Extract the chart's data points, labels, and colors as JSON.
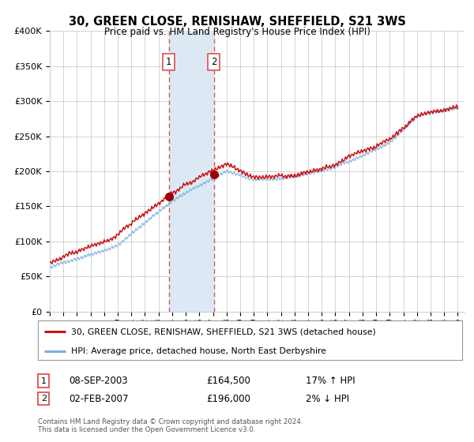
{
  "title": "30, GREEN CLOSE, RENISHAW, SHEFFIELD, S21 3WS",
  "subtitle": "Price paid vs. HM Land Registry's House Price Index (HPI)",
  "red_line_label": "30, GREEN CLOSE, RENISHAW, SHEFFIELD, S21 3WS (detached house)",
  "blue_line_label": "HPI: Average price, detached house, North East Derbyshire",
  "sale1_date": "08-SEP-2003",
  "sale1_price": "£164,500",
  "sale1_hpi": "17% ↑ HPI",
  "sale2_date": "02-FEB-2007",
  "sale2_price": "£196,000",
  "sale2_hpi": "2% ↓ HPI",
  "footer": "Contains HM Land Registry data © Crown copyright and database right 2024.\nThis data is licensed under the Open Government Licence v3.0.",
  "sale1_year": 2003.75,
  "sale2_year": 2007.08,
  "ylim_min": 0,
  "ylim_max": 400000,
  "xlim_start": 1995.0,
  "xlim_end": 2025.5,
  "background_color": "#ffffff",
  "grid_color": "#cccccc",
  "shade_color": "#dce9f5",
  "vline_color": "#e05050",
  "red_color": "#cc1111",
  "blue_color": "#7aade0",
  "marker_color": "#990000"
}
